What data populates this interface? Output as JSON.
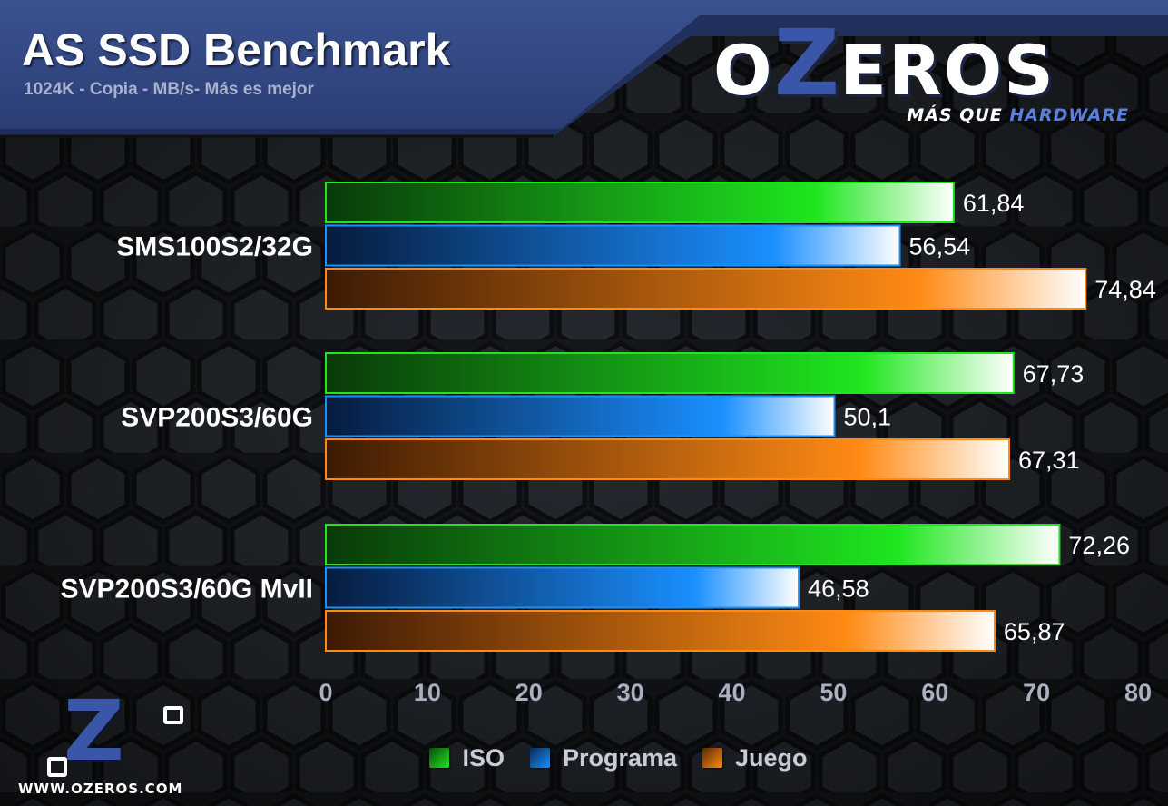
{
  "header": {
    "title": "AS SSD Benchmark",
    "subtitle": "1024K - Copia - MB/s- Más es mejor"
  },
  "brand": {
    "word_first": "O",
    "word_z": "Z",
    "word_rest": "EROS",
    "tagline_white": "MÁS QUE",
    "tagline_accent": "HARDWARE",
    "site": "WWW.OZEROS.COM",
    "logo_icon": "ozeros-logo-icon",
    "accent_color": "#3a56a8"
  },
  "chart_data": {
    "type": "bar",
    "orientation": "horizontal",
    "title": "AS SSD Benchmark",
    "subtitle": "1024K - Copia - MB/s- Más es mejor",
    "categories": [
      "SMS100S2/32G",
      "SVP200S3/60G",
      "SVP200S3/60G MvII"
    ],
    "series": [
      {
        "name": "ISO",
        "color": "#1fe61f",
        "values": [
          61.84,
          67.73,
          72.26
        ],
        "labels": [
          "61,84",
          "67,73",
          "72,26"
        ]
      },
      {
        "name": "Programa",
        "color": "#1a8fff",
        "values": [
          56.54,
          50.1,
          46.58
        ],
        "labels": [
          "56,54",
          "50,1",
          "46,58"
        ]
      },
      {
        "name": "Juego",
        "color": "#ff8a14",
        "values": [
          74.84,
          67.31,
          65.87
        ],
        "labels": [
          "74,84",
          "67,31",
          "65,87"
        ]
      }
    ],
    "xlim": [
      0,
      80
    ],
    "xticks": [
      "0",
      "10",
      "20",
      "30",
      "40",
      "50",
      "60",
      "70",
      "80"
    ],
    "xlabel": "",
    "ylabel": "",
    "legend_position": "bottom",
    "grid": false
  }
}
